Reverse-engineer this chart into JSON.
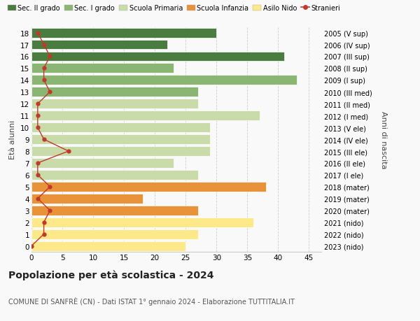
{
  "ages": [
    0,
    1,
    2,
    3,
    4,
    5,
    6,
    7,
    8,
    9,
    10,
    11,
    12,
    13,
    14,
    15,
    16,
    17,
    18
  ],
  "bar_values": [
    25,
    27,
    36,
    27,
    18,
    38,
    27,
    23,
    29,
    29,
    29,
    37,
    27,
    27,
    43,
    23,
    41,
    22,
    30
  ],
  "bar_colors": [
    "#fde88a",
    "#fde88a",
    "#fde88a",
    "#e8933a",
    "#e8933a",
    "#e8933a",
    "#c8dba8",
    "#c8dba8",
    "#c8dba8",
    "#c8dba8",
    "#c8dba8",
    "#c8dba8",
    "#c8dba8",
    "#8ab572",
    "#8ab572",
    "#8ab572",
    "#4a7c3f",
    "#4a7c3f",
    "#4a7c3f"
  ],
  "right_labels": [
    "2023 (nido)",
    "2022 (nido)",
    "2021 (nido)",
    "2020 (mater)",
    "2019 (mater)",
    "2018 (mater)",
    "2017 (I ele)",
    "2016 (II ele)",
    "2015 (III ele)",
    "2014 (IV ele)",
    "2013 (V ele)",
    "2012 (I med)",
    "2011 (II med)",
    "2010 (III med)",
    "2009 (I sup)",
    "2008 (II sup)",
    "2007 (III sup)",
    "2006 (IV sup)",
    "2005 (V sup)"
  ],
  "stranieri_values": [
    0,
    2,
    2,
    3,
    1,
    3,
    1,
    1,
    6,
    2,
    1,
    1,
    1,
    3,
    2,
    2,
    3,
    2,
    1
  ],
  "legend_labels": [
    "Sec. II grado",
    "Sec. I grado",
    "Scuola Primaria",
    "Scuola Infanzia",
    "Asilo Nido",
    "Stranieri"
  ],
  "legend_colors": [
    "#4a7c3f",
    "#8ab572",
    "#c8dba8",
    "#e8933a",
    "#fde88a",
    "#c0392b"
  ],
  "ylabel_left": "Età alunni",
  "ylabel_right": "Anni di nascita",
  "title": "Popolazione per età scolastica - 2024",
  "subtitle": "COMUNE DI SANFRÈ (CN) - Dati ISTAT 1° gennaio 2024 - Elaborazione TUTTITALIA.IT",
  "xlim": [
    0,
    47
  ],
  "xticks": [
    0,
    5,
    10,
    15,
    20,
    25,
    30,
    35,
    40,
    45
  ],
  "background_color": "#f9f9f9",
  "grid_color": "#cccccc"
}
